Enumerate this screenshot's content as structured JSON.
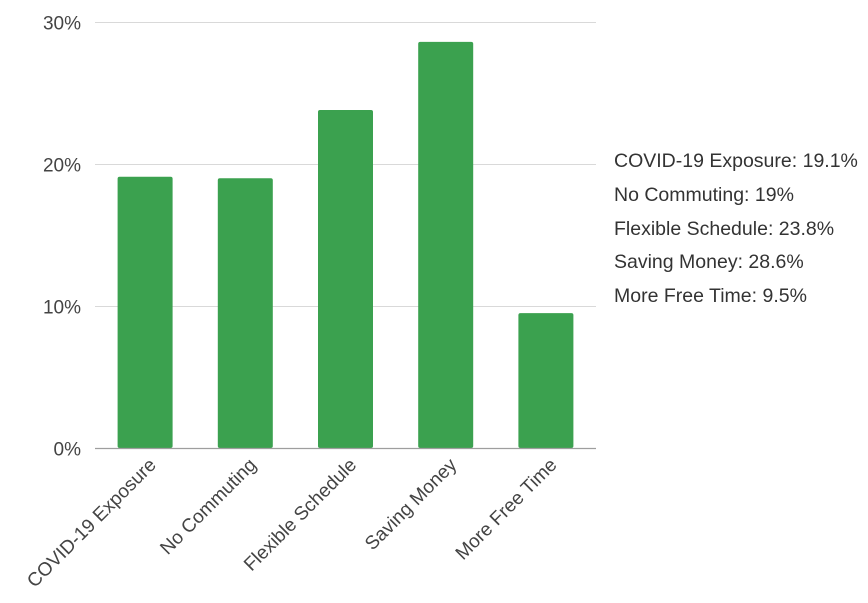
{
  "chart_data": {
    "type": "bar",
    "categories": [
      "COVID-19 Exposure",
      "No Commuting",
      "Flexible Schedule",
      "Saving Money",
      "More Free Time"
    ],
    "values": [
      19.1,
      19.0,
      23.8,
      28.6,
      9.5
    ],
    "ylim": [
      0,
      30
    ],
    "yticks": [
      {
        "value": 0,
        "label": "0%"
      },
      {
        "value": 10,
        "label": "10%"
      },
      {
        "value": 20,
        "label": "20%"
      },
      {
        "value": 30,
        "label": "30%"
      }
    ],
    "grid": true,
    "bar_color": "#3ba14f",
    "legend_position": "right",
    "legend": [
      {
        "name": "COVID-19 Exposure",
        "value_label": "19.1%"
      },
      {
        "name": "No Commuting",
        "value_label": "19%"
      },
      {
        "name": "Flexible Schedule",
        "value_label": "23.8%"
      },
      {
        "name": "Saving Money",
        "value_label": "28.6%"
      },
      {
        "name": "More Free Time",
        "value_label": "9.5%"
      }
    ],
    "colors": {
      "gridline": "#d9d9d9",
      "axis_line": "#9e9e9e",
      "text": "#444444"
    }
  }
}
